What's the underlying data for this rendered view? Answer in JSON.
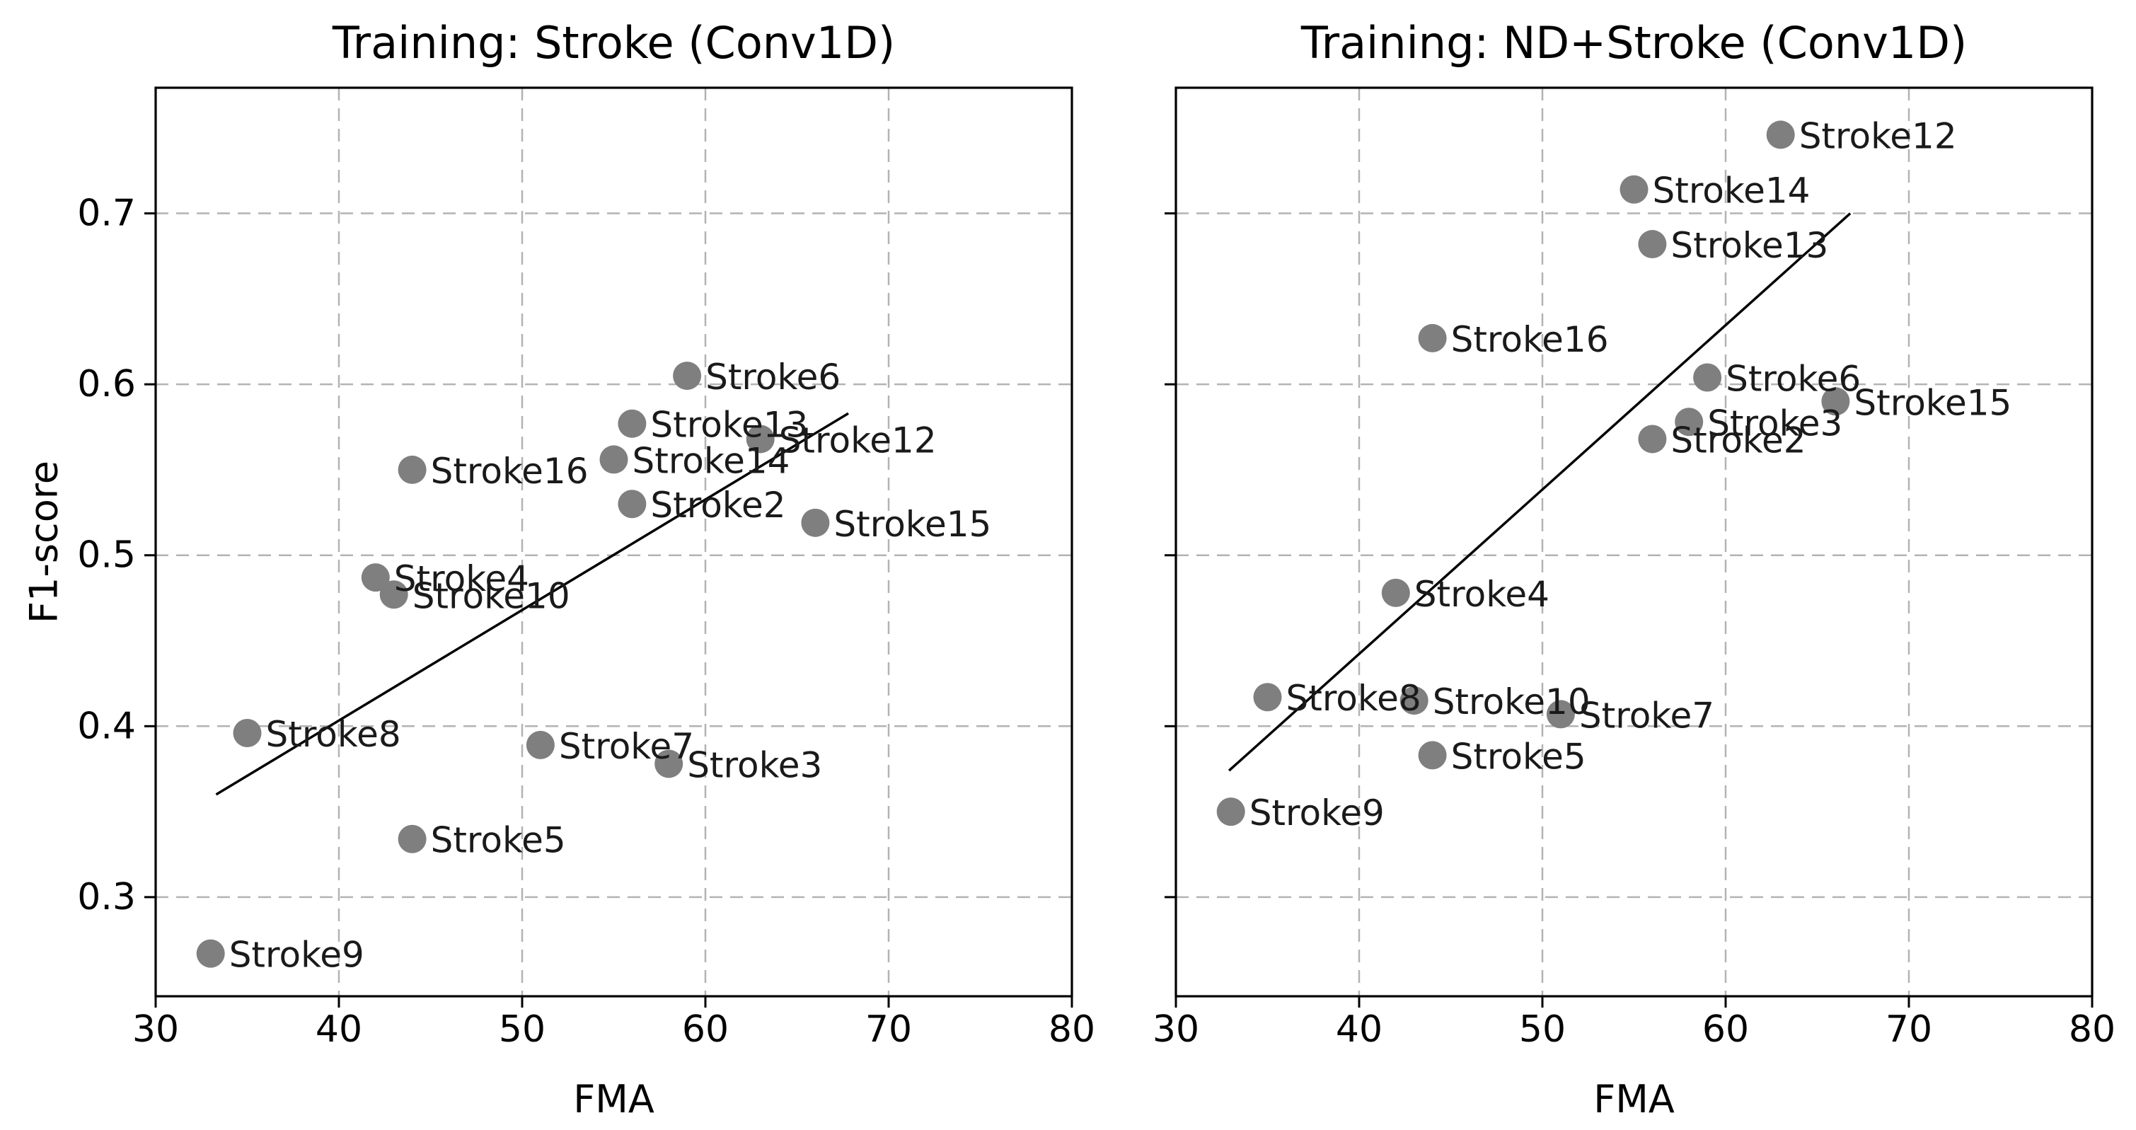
{
  "figure": {
    "background": "#ffffff",
    "point_color": "#7f7f7f",
    "annotation_color": "#1a1a1a",
    "tick_color": "#000000",
    "grid_color": "#b3b3b3",
    "spine_color": "#000000",
    "trend_color": "#000000"
  },
  "chart_data": [
    {
      "type": "scatter",
      "title": "Training: Stroke (Conv1D)",
      "xlabel": "FMA",
      "ylabel": "F1-score",
      "xlim": [
        30,
        80
      ],
      "ylim": [
        0.242,
        0.7735
      ],
      "xticks": [
        30,
        40,
        50,
        60,
        70,
        80
      ],
      "yticks": [
        0.3,
        0.4,
        0.5,
        0.6,
        0.7
      ],
      "grid": true,
      "legend": "none",
      "points": [
        {
          "label": "Stroke2",
          "x": 56,
          "y": 0.53
        },
        {
          "label": "Stroke3",
          "x": 58,
          "y": 0.378
        },
        {
          "label": "Stroke4",
          "x": 42,
          "y": 0.487
        },
        {
          "label": "Stroke5",
          "x": 44,
          "y": 0.334
        },
        {
          "label": "Stroke6",
          "x": 59,
          "y": 0.605
        },
        {
          "label": "Stroke7",
          "x": 51,
          "y": 0.389
        },
        {
          "label": "Stroke8",
          "x": 35,
          "y": 0.396
        },
        {
          "label": "Stroke9",
          "x": 33,
          "y": 0.267
        },
        {
          "label": "Stroke10",
          "x": 43,
          "y": 0.477
        },
        {
          "label": "Stroke12",
          "x": 63,
          "y": 0.568
        },
        {
          "label": "Stroke13",
          "x": 56,
          "y": 0.577
        },
        {
          "label": "Stroke14",
          "x": 55,
          "y": 0.556
        },
        {
          "label": "Stroke15",
          "x": 66,
          "y": 0.519
        },
        {
          "label": "Stroke16",
          "x": 44,
          "y": 0.55
        }
      ],
      "trend_line": {
        "x1": 33.3,
        "y1": 0.36,
        "x2": 67.8,
        "y2": 0.583
      }
    },
    {
      "type": "scatter",
      "title": "Training: ND+Stroke (Conv1D)",
      "xlabel": "FMA",
      "ylabel": "",
      "xlim": [
        30,
        80
      ],
      "ylim": [
        0.242,
        0.7735
      ],
      "xticks": [
        30,
        40,
        50,
        60,
        70,
        80
      ],
      "yticks": [
        0.3,
        0.4,
        0.5,
        0.6,
        0.7
      ],
      "grid": true,
      "legend": "none",
      "points": [
        {
          "label": "Stroke2",
          "x": 56,
          "y": 0.568
        },
        {
          "label": "Stroke3",
          "x": 58,
          "y": 0.578
        },
        {
          "label": "Stroke4",
          "x": 42,
          "y": 0.478
        },
        {
          "label": "Stroke5",
          "x": 44,
          "y": 0.383
        },
        {
          "label": "Stroke6",
          "x": 59,
          "y": 0.604
        },
        {
          "label": "Stroke7",
          "x": 51,
          "y": 0.407
        },
        {
          "label": "Stroke8",
          "x": 35,
          "y": 0.417
        },
        {
          "label": "Stroke9",
          "x": 33,
          "y": 0.35
        },
        {
          "label": "Stroke10",
          "x": 43,
          "y": 0.415
        },
        {
          "label": "Stroke12",
          "x": 63,
          "y": 0.746
        },
        {
          "label": "Stroke13",
          "x": 56,
          "y": 0.682
        },
        {
          "label": "Stroke14",
          "x": 55,
          "y": 0.714
        },
        {
          "label": "Stroke15",
          "x": 66,
          "y": 0.59
        },
        {
          "label": "Stroke16",
          "x": 44,
          "y": 0.627
        }
      ],
      "trend_line": {
        "x1": 32.9,
        "y1": 0.374,
        "x2": 66.8,
        "y2": 0.7
      }
    }
  ]
}
